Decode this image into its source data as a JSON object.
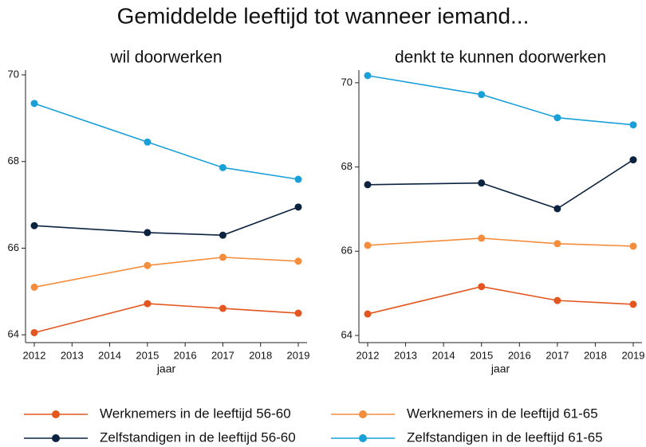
{
  "title": "Gemiddelde leeftijd tot wanneer iemand...",
  "chart_data": [
    {
      "type": "line",
      "title": "wil doorwerken",
      "xlabel": "jaar",
      "x": [
        2012,
        2015,
        2017,
        2019
      ],
      "xlim": [
        2012,
        2019
      ],
      "xticks": [
        2012,
        2013,
        2014,
        2015,
        2016,
        2017,
        2018,
        2019
      ],
      "ylim": [
        63.82,
        70.11
      ],
      "yticks": [
        64,
        66,
        68,
        70
      ],
      "series": [
        {
          "name": "Werknemers in de leeftijd 56-60",
          "color": "#e4561f",
          "values": [
            64.05,
            64.72,
            64.61,
            64.5
          ]
        },
        {
          "name": "Werknemers in de leeftijd 61-65",
          "color": "#f48d3c",
          "values": [
            65.1,
            65.6,
            65.79,
            65.7
          ]
        },
        {
          "name": "Zelfstandigen in de leeftijd 56-60",
          "color": "#0c2340",
          "values": [
            66.52,
            66.36,
            66.3,
            66.95
          ]
        },
        {
          "name": "Zelfstandigen in de leeftijd 61-65",
          "color": "#1aa0d8",
          "values": [
            69.34,
            68.45,
            67.86,
            67.59
          ]
        }
      ]
    },
    {
      "type": "line",
      "title": "denkt te kunnen doorwerken",
      "xlabel": "jaar",
      "x": [
        2012,
        2015,
        2017,
        2019
      ],
      "xlim": [
        2012,
        2019
      ],
      "xticks": [
        2012,
        2013,
        2014,
        2015,
        2016,
        2017,
        2018,
        2019
      ],
      "ylim": [
        63.83,
        70.3
      ],
      "yticks": [
        64,
        66,
        68,
        70
      ],
      "series": [
        {
          "name": "Werknemers in de leeftijd 56-60",
          "color": "#e4561f",
          "values": [
            64.51,
            65.16,
            64.83,
            64.74
          ]
        },
        {
          "name": "Werknemers in de leeftijd 61-65",
          "color": "#f48d3c",
          "values": [
            66.14,
            66.31,
            66.18,
            66.12
          ]
        },
        {
          "name": "Zelfstandigen in de leeftijd 56-60",
          "color": "#0c2340",
          "values": [
            67.58,
            67.62,
            67.01,
            68.17
          ]
        },
        {
          "name": "Zelfstandigen in de leeftijd 61-65",
          "color": "#1aa0d8",
          "values": [
            70.17,
            69.72,
            69.17,
            69.0
          ]
        }
      ]
    }
  ]
}
